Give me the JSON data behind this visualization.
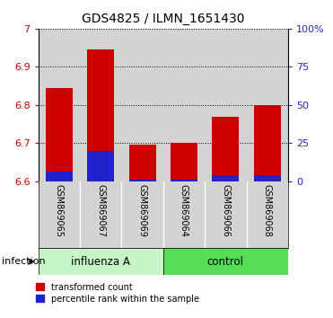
{
  "title": "GDS4825 / ILMN_1651430",
  "categories": [
    "GSM869065",
    "GSM869067",
    "GSM869069",
    "GSM869064",
    "GSM869066",
    "GSM869068"
  ],
  "group_labels": [
    "influenza A",
    "control"
  ],
  "infection_label": "infection",
  "ylim_left": [
    6.6,
    7.0
  ],
  "yticks_left": [
    6.6,
    6.7,
    6.8,
    6.9,
    7.0
  ],
  "ytick_labels_left": [
    "6.6",
    "6.7",
    "6.8",
    "6.9",
    "7"
  ],
  "yticks_right": [
    0,
    25,
    50,
    75,
    100
  ],
  "ytick_labels_right": [
    "0",
    "25",
    "50",
    "75",
    "100%"
  ],
  "bar_base": 6.6,
  "red_tops": [
    6.845,
    6.945,
    6.695,
    6.7,
    6.77,
    6.8
  ],
  "blue_tops": [
    6.625,
    6.68,
    6.605,
    6.605,
    6.615,
    6.617
  ],
  "red_color": "#cc0000",
  "blue_color": "#2222cc",
  "bar_width": 0.65,
  "bar_bg_color": "#d3d3d3",
  "influenza_color": "#c8f5c8",
  "control_color": "#55dd55",
  "left_yaxis_color": "#cc0000",
  "right_yaxis_color": "#2222cc",
  "legend_red_label": "transformed count",
  "legend_blue_label": "percentile rank within the sample"
}
